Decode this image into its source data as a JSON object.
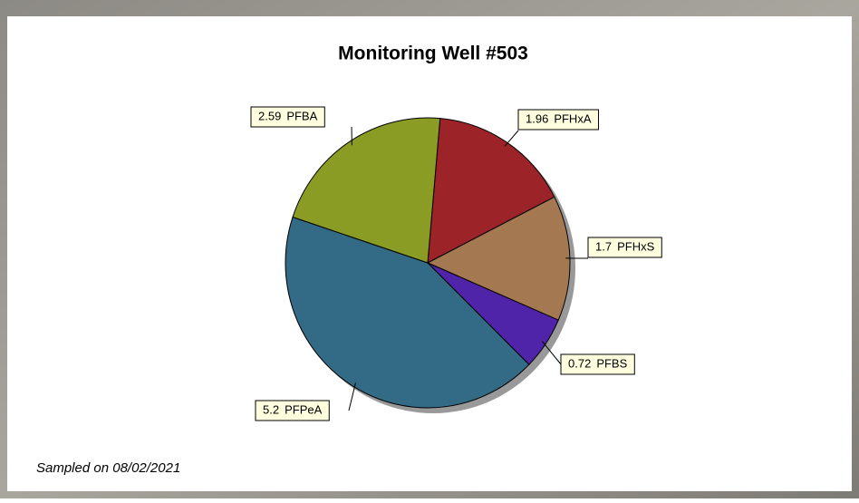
{
  "chart_data": {
    "type": "pie",
    "title": "Monitoring Well #503",
    "categories": [
      "PFHxA",
      "PFHxS",
      "PFBS",
      "PFPeA",
      "PFBA"
    ],
    "values": [
      1.96,
      1.7,
      0.72,
      5.2,
      2.59
    ],
    "colors": [
      "#9c2428",
      "#a47850",
      "#5024a8",
      "#336a86",
      "#8a9c24"
    ],
    "footnote": "Sampled on 08/02/2021"
  }
}
